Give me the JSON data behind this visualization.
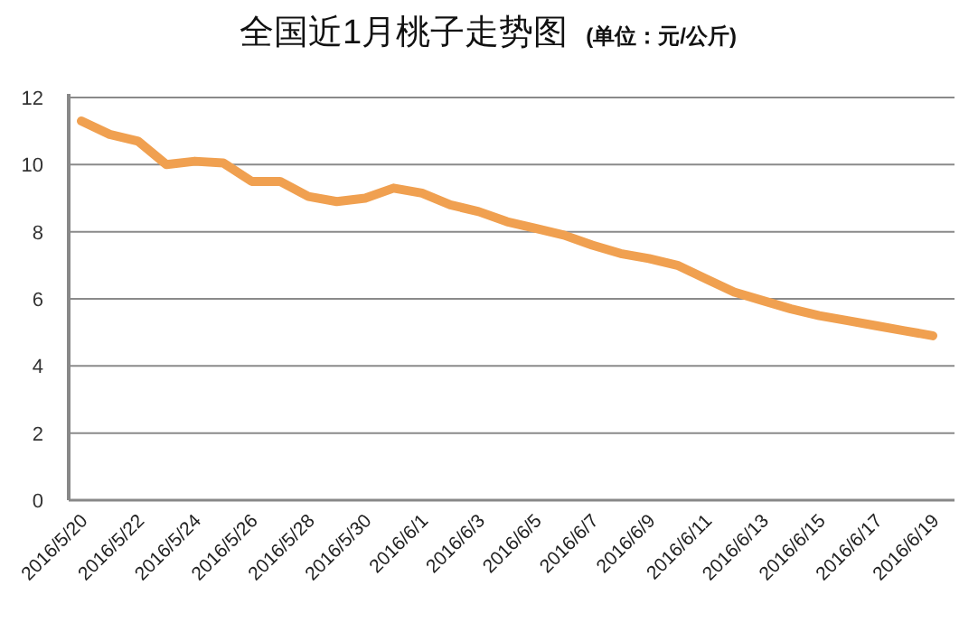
{
  "chart_data": {
    "type": "line",
    "title": "全国近1月桃子走势图",
    "subtitle": "(单位：元/公斤)",
    "categories": [
      "2016/5/20",
      null,
      "2016/5/22",
      null,
      "2016/5/24",
      null,
      "2016/5/26",
      null,
      "2016/5/28",
      null,
      "2016/5/30",
      null,
      "2016/6/1",
      null,
      "2016/6/3",
      null,
      "2016/6/5",
      null,
      "2016/6/7",
      null,
      "2016/6/9",
      null,
      "2016/6/11",
      null,
      "2016/6/13",
      null,
      "2016/6/15",
      null,
      "2016/6/17",
      null,
      "2016/6/19"
    ],
    "series": [
      {
        "color": "#f0a050",
        "values": [
          11.3,
          10.9,
          10.7,
          10.0,
          10.1,
          10.05,
          9.5,
          9.5,
          9.05,
          8.9,
          9.0,
          9.3,
          9.15,
          8.8,
          8.6,
          8.3,
          8.1,
          7.9,
          7.6,
          7.35,
          7.2,
          7.0,
          6.6,
          6.2,
          5.95,
          5.7,
          5.5,
          5.35,
          5.2,
          5.05,
          4.9
        ]
      }
    ],
    "ylim": [
      0,
      12
    ],
    "yticks": [
      0,
      2,
      4,
      6,
      8,
      10,
      12
    ],
    "grid": "y",
    "marker": "none",
    "line_style": "solid"
  }
}
